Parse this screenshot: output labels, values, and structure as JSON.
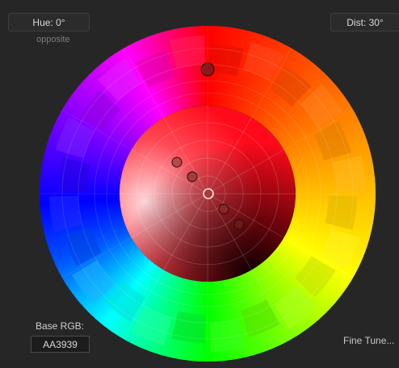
{
  "header": {
    "hue_label": "Hue: 0°",
    "dist_label": "Dist: 30°",
    "scheme_label": "opposite"
  },
  "footer": {
    "base_rgb_label": "Base RGB:",
    "base_rgb_value": "AA3939",
    "fine_tune_label": "Fine Tune..."
  },
  "wheel": {
    "base_hue_deg": 0,
    "distance_deg": 30,
    "colors": {
      "base": "#AA3939",
      "primary_marker": "#8A1A1A"
    }
  }
}
